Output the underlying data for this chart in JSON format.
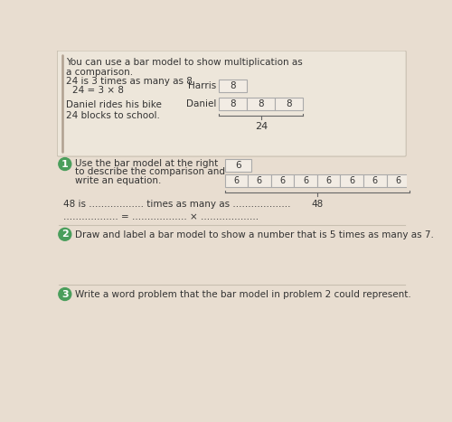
{
  "page_bg": "#e8ddd0",
  "top_bg": "#e8ddd0",
  "box_fill": "#f2ece4",
  "box_border": "#aaaaaa",
  "title_text": "You can use a bar model to show multiplication as\na comparison.",
  "example_line1": "24 is 3 times as many as 8.",
  "example_line2": "24 = 3 × 8",
  "example_line3": "Daniel rides his bike\n24 blocks to school.",
  "harris_label": "Harris",
  "daniel_label": "Daniel",
  "harris_value": "8",
  "daniel_values": [
    "8",
    "8",
    "8"
  ],
  "daniel_total": "24",
  "q1_circle_color": "#4a9e5c",
  "q1_text1": "Use the bar model at the right",
  "q1_text2": "to describe the comparison and",
  "q1_text3": "write an equation.",
  "q1_top_value": "6",
  "q1_bottom_values": [
    "6",
    "6",
    "6",
    "6",
    "6",
    "6",
    "6",
    "6"
  ],
  "q1_total": "48",
  "q1_blank1": "48 is .................. times as many as ...................",
  "q1_blank2": ".................. = .................. × ...................",
  "q2_circle_color": "#4a9e5c",
  "q2_text": "Draw and label a bar model to show a number that is 5 times as many as 7.",
  "q3_circle_color": "#4a9e5c",
  "q3_text": "Write a word problem that the bar model in problem 2 could represent.",
  "text_color": "#333333",
  "gray_text": "#555555",
  "font_body": 7.5,
  "font_small": 7.0,
  "accent_line_color": "#b0a090",
  "divider_color": "#c8bfb0"
}
